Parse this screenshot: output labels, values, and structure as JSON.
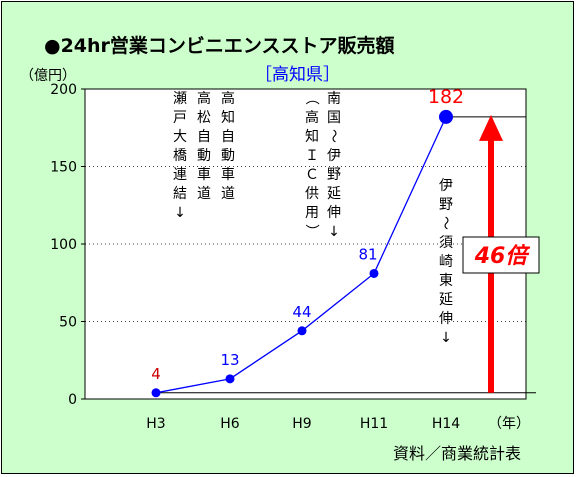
{
  "title": "●24hr営業コンビニエンスストア販売額",
  "subtitle": "［高知県］",
  "source": "資料／商業統計表",
  "chart_data": {
    "type": "line",
    "ylabel": "（億円）",
    "xlabel": "（年）",
    "ylim": [
      0,
      200
    ],
    "yticks": [
      0,
      50,
      100,
      150,
      200
    ],
    "categories": [
      "H3",
      "H6",
      "H9",
      "H11",
      "H14"
    ],
    "values": [
      4,
      13,
      44,
      81,
      182
    ],
    "value_labels": [
      "4",
      "13",
      "44",
      "81",
      "182"
    ],
    "grid": "horizontal-dotted",
    "line_color": "#0000ff",
    "highlight_labels": {
      "0": "#cc0000",
      "4": "#ff0000"
    },
    "annotations": [
      {
        "id": "a1",
        "lines": [
          "高知自動車道",
          "高松自動車道",
          "瀬戸大橋連結↓"
        ]
      },
      {
        "id": "a2",
        "lines": [
          "南国〜伊野延伸↓",
          "（高知ＩＣ供用）"
        ]
      },
      {
        "id": "a3",
        "lines": [
          "伊野〜須崎東延伸↓"
        ]
      }
    ],
    "growth_label": "46倍",
    "growth_color": "#ff0000"
  }
}
